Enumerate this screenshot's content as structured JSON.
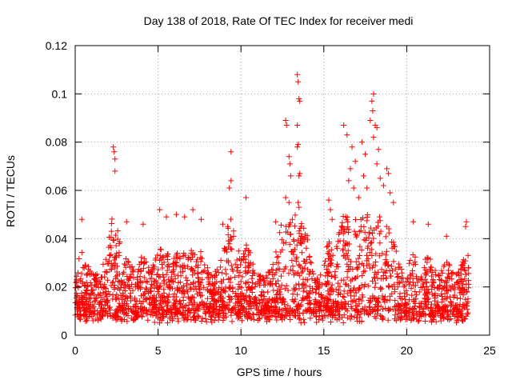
{
  "chart_data": {
    "type": "scatter",
    "title": "Day 138 of 2018, Rate Of TEC Index for receiver medi",
    "xlabel": "GPS time / hours",
    "ylabel": "ROTI / TECUs",
    "xlim": [
      0,
      25
    ],
    "ylim": [
      0,
      0.12
    ],
    "xticks": [
      0,
      5,
      10,
      15,
      20,
      25
    ],
    "xtick_labels": [
      "0",
      "5",
      "10",
      "15",
      "20",
      "25"
    ],
    "yticks": [
      0,
      0.02,
      0.04,
      0.06,
      0.08,
      0.1,
      0.12
    ],
    "ytick_labels": [
      "0",
      "0.02",
      "0.04",
      "0.06",
      "0.08",
      "0.1",
      "0.12"
    ],
    "grid": true,
    "marker": "+",
    "color": "#ff0000",
    "data_range_hours": [
      0,
      23.75
    ],
    "series": [
      {
        "name": "ROTI",
        "points": [
          [
            0.4,
            0.048
          ],
          [
            2.3,
            0.078
          ],
          [
            2.35,
            0.076
          ],
          [
            2.4,
            0.073
          ],
          [
            2.4,
            0.068
          ],
          [
            3.1,
            0.047
          ],
          [
            4.1,
            0.046
          ],
          [
            5.1,
            0.052
          ],
          [
            5.5,
            0.049
          ],
          [
            6.1,
            0.05
          ],
          [
            6.6,
            0.049
          ],
          [
            7.1,
            0.052
          ],
          [
            7.6,
            0.048
          ],
          [
            8.9,
            0.046
          ],
          [
            9.2,
            0.045
          ],
          [
            9.4,
            0.076
          ],
          [
            9.4,
            0.064
          ],
          [
            9.3,
            0.061
          ],
          [
            10.3,
            0.057
          ],
          [
            12.1,
            0.047
          ],
          [
            12.7,
            0.089
          ],
          [
            12.75,
            0.087
          ],
          [
            12.7,
            0.057
          ],
          [
            12.9,
            0.074
          ],
          [
            12.95,
            0.071
          ],
          [
            13.0,
            0.066
          ],
          [
            12.9,
            0.055
          ],
          [
            13.1,
            0.048
          ],
          [
            13.4,
            0.108
          ],
          [
            13.45,
            0.105
          ],
          [
            13.5,
            0.098
          ],
          [
            13.55,
            0.097
          ],
          [
            13.4,
            0.087
          ],
          [
            13.45,
            0.079
          ],
          [
            13.4,
            0.078
          ],
          [
            13.55,
            0.067
          ],
          [
            13.5,
            0.066
          ],
          [
            13.45,
            0.055
          ],
          [
            13.5,
            0.053
          ],
          [
            15.3,
            0.056
          ],
          [
            15.4,
            0.052
          ],
          [
            15.5,
            0.048
          ],
          [
            16.2,
            0.087
          ],
          [
            16.4,
            0.083
          ],
          [
            16.7,
            0.078
          ],
          [
            16.9,
            0.072
          ],
          [
            16.6,
            0.069
          ],
          [
            16.5,
            0.064
          ],
          [
            16.8,
            0.061
          ],
          [
            17.1,
            0.057
          ],
          [
            17.3,
            0.08
          ],
          [
            17.5,
            0.075
          ],
          [
            17.4,
            0.066
          ],
          [
            17.6,
            0.061
          ],
          [
            17.8,
            0.089
          ],
          [
            17.9,
            0.097
          ],
          [
            18.0,
            0.1
          ],
          [
            17.95,
            0.093
          ],
          [
            18.1,
            0.087
          ],
          [
            18.2,
            0.086
          ],
          [
            18.0,
            0.082
          ],
          [
            18.3,
            0.077
          ],
          [
            18.2,
            0.071
          ],
          [
            18.4,
            0.065
          ],
          [
            18.6,
            0.062
          ],
          [
            18.8,
            0.069
          ],
          [
            18.9,
            0.067
          ],
          [
            19.0,
            0.059
          ],
          [
            19.2,
            0.055
          ],
          [
            20.4,
            0.047
          ],
          [
            21.3,
            0.046
          ],
          [
            22.4,
            0.041
          ],
          [
            23.6,
            0.047
          ],
          [
            23.55,
            0.045
          ]
        ]
      }
    ]
  }
}
